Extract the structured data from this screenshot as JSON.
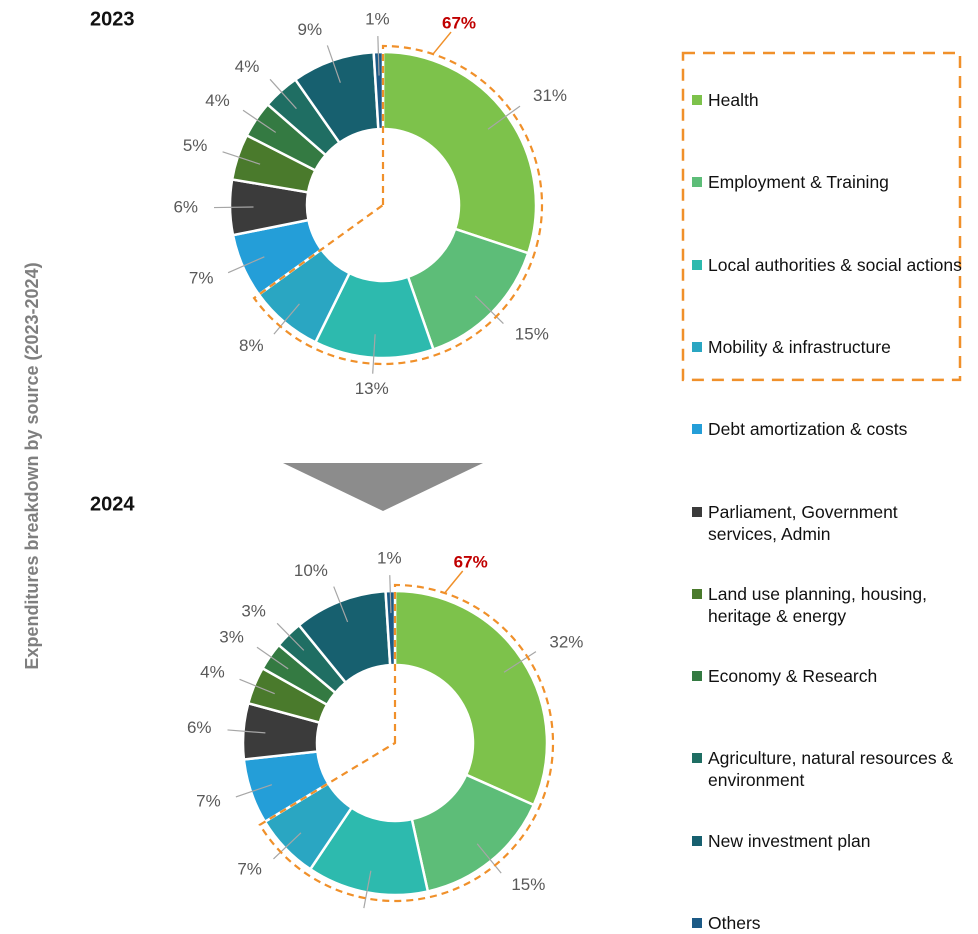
{
  "side_label": "Expenditures breakdown by source (2023-2024)",
  "chart_data": [
    {
      "type": "donut",
      "title": "2023",
      "categories": [
        "Health",
        "Employment & Training",
        "Local authorities & social actions",
        "Mobility & infrastructure",
        "Debt amortization & costs",
        "Parliament, Government services, Admin",
        "Land use planning, housing, heritage & energy",
        "Economy & Research",
        "Agriculture, natural resources & environment",
        "New investment plan",
        "Others"
      ],
      "values": [
        31,
        15,
        13,
        8,
        7,
        6,
        5,
        4,
        4,
        9,
        1
      ],
      "value_labels": [
        "31%",
        "15%",
        "13%",
        "8%",
        "7%",
        "6%",
        "5%",
        "4%",
        "4%",
        "9%",
        "1%"
      ],
      "colors": [
        "#7dc24b",
        "#5dbd78",
        "#2dbaae",
        "#2aa6c2",
        "#249ed8",
        "#3b3b3b",
        "#4a7a2c",
        "#347a42",
        "#1f6e63",
        "#17606f",
        "#1c5a86"
      ],
      "highlight": {
        "label": "67%",
        "count": 4
      }
    },
    {
      "type": "donut",
      "title": "2024",
      "categories": [
        "Health",
        "Employment & Training",
        "Local authorities & social actions",
        "Mobility & infrastructure",
        "Debt amortization & costs",
        "Parliament, Government services, Admin",
        "Land use planning, housing, heritage & energy",
        "Economy & Research",
        "Agriculture, natural resources & environment",
        "New investment plan",
        "Others"
      ],
      "values": [
        32,
        15,
        13,
        7,
        7,
        6,
        4,
        3,
        3,
        10,
        1
      ],
      "value_labels": [
        "32%",
        "15%",
        null,
        "7%",
        "7%",
        "6%",
        "4%",
        "3%",
        "3%",
        "10%",
        "1%"
      ],
      "colors": [
        "#7dc24b",
        "#5dbd78",
        "#2dbaae",
        "#2aa6c2",
        "#249ed8",
        "#3b3b3b",
        "#4a7a2c",
        "#347a42",
        "#1f6e63",
        "#17606f",
        "#1c5a86"
      ],
      "highlight": {
        "label": "67%",
        "count": 4
      }
    }
  ]
}
